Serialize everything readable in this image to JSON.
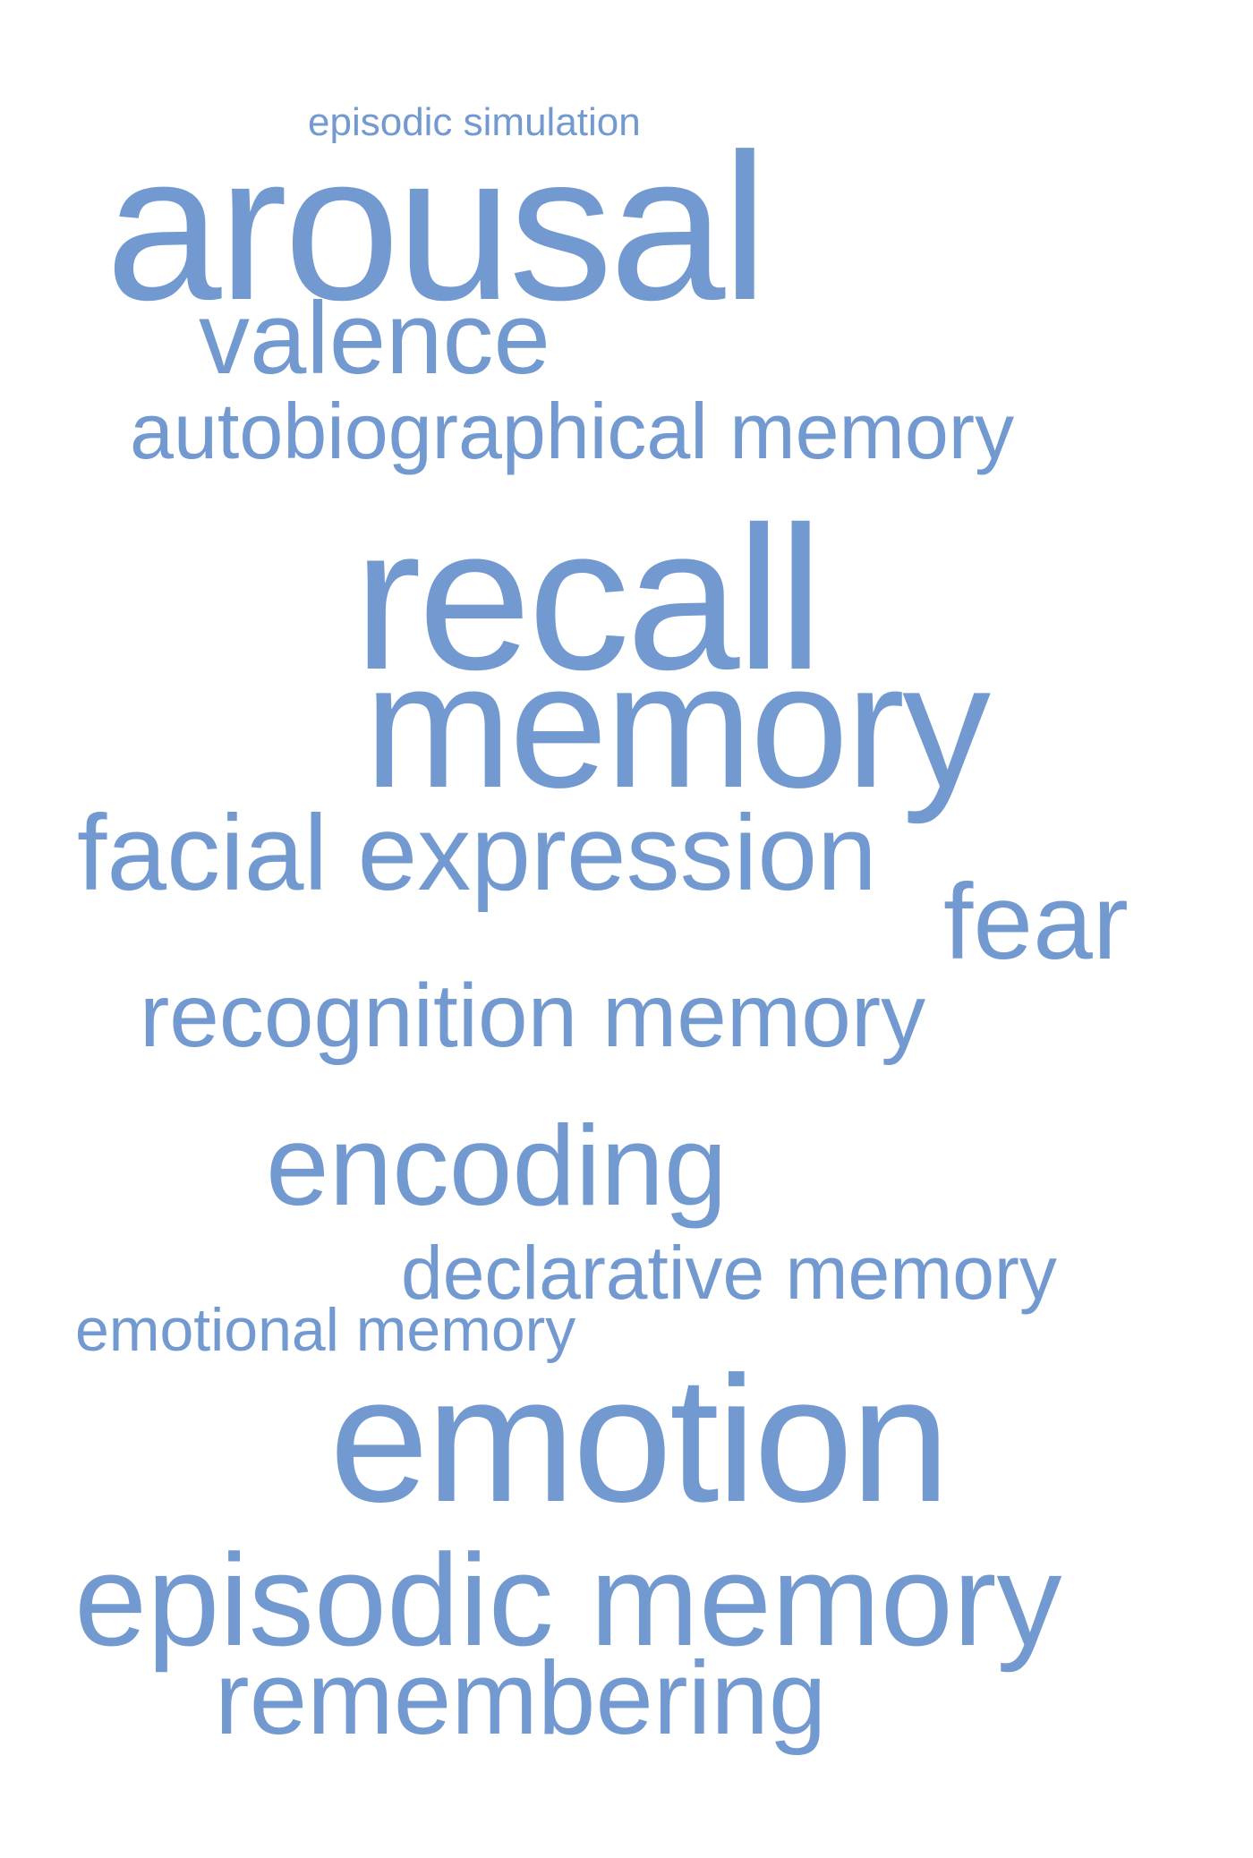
{
  "color": "#7299d0",
  "background": "#ffffff",
  "words": {
    "episodic_simulation": "episodic simulation",
    "arousal": "arousal",
    "valence": "valence",
    "autobiographical_memory": "autobiographical memory",
    "recall": "recall",
    "memory": "memory",
    "facial_expression": "facial expression",
    "fear": "fear",
    "recognition_memory": "recognition memory",
    "encoding": "encoding",
    "declarative_memory": "declarative memory",
    "emotional_memory": "emotional memory",
    "emotion": "emotion",
    "episodic_memory": "episodic memory",
    "remembering": "remembering"
  }
}
